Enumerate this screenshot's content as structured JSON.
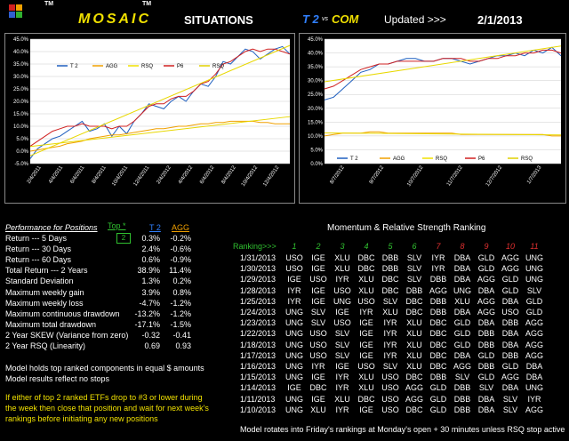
{
  "header": {
    "tm1": "TM",
    "brand": "MOSAIC",
    "tm2": "TM",
    "situations": "SITUATIONS",
    "t2": "T 2",
    "vs": "vs",
    "com": "COM",
    "updated_label": "Updated >>>",
    "updated_date": "2/1/2013"
  },
  "legend": {
    "items": [
      {
        "label": "T 2",
        "color": "#1f5fbf"
      },
      {
        "label": "AGG",
        "color": "#f0a000"
      },
      {
        "label": "RSQ",
        "color": "#f0e000"
      },
      {
        "label": "P6",
        "color": "#d02020"
      },
      {
        "label": "RSQ",
        "color": "#e0d000"
      }
    ]
  },
  "chart_data": [
    {
      "type": "line",
      "title": "",
      "y_ticks": [
        "45.0%",
        "40.0%",
        "35.0%",
        "30.0%",
        "25.0%",
        "20.0%",
        "15.0%",
        "10.0%",
        "5.0%",
        "0.0%",
        "-5.0%"
      ],
      "x_ticks": [
        "2/4/2011",
        "4/4/2011",
        "6/4/2011",
        "8/4/2011",
        "10/4/2011",
        "12/4/2011",
        "2/4/2012",
        "4/4/2012",
        "6/4/2012",
        "8/4/2012",
        "10/4/2012",
        "12/4/2012"
      ],
      "ylim": [
        -5,
        45
      ],
      "series": [
        {
          "name": "T 2",
          "values": [
            -3,
            1,
            3,
            5,
            6,
            8,
            10,
            12,
            8,
            9,
            11,
            6,
            10,
            7,
            12,
            15,
            19,
            18,
            17,
            20,
            22,
            20,
            24,
            27,
            26,
            30,
            36,
            35,
            38,
            41,
            40,
            37,
            39,
            41,
            42,
            39
          ]
        },
        {
          "name": "AGG",
          "values": [
            0,
            0.5,
            1,
            1.5,
            2,
            3,
            3.5,
            4,
            5,
            5.5,
            6,
            6.5,
            6.5,
            7,
            7.5,
            8,
            8.5,
            9,
            9,
            9.5,
            10,
            10,
            10.5,
            11,
            11,
            11.5,
            11.5,
            12,
            12,
            12,
            12,
            11.5,
            11.5,
            11,
            11,
            11
          ]
        },
        {
          "name": "P6",
          "values": [
            2,
            4,
            6,
            8,
            9,
            10,
            10,
            11,
            10,
            10,
            10,
            9,
            10,
            10,
            12,
            15,
            18,
            19,
            19,
            21,
            22,
            22,
            24,
            27,
            28,
            31,
            35,
            36,
            38,
            40,
            41,
            40,
            41,
            41,
            40,
            39
          ]
        }
      ]
    },
    {
      "type": "line",
      "title": "",
      "y_ticks": [
        "45.0%",
        "40.0%",
        "35.0%",
        "30.0%",
        "25.0%",
        "20.0%",
        "15.0%",
        "10.0%",
        "5.0%",
        "0.0%"
      ],
      "x_ticks": [
        "8/7/2012",
        "9/7/2012",
        "10/7/2012",
        "11/7/2012",
        "12/7/2012",
        "1/7/2013"
      ],
      "ylim": [
        0,
        45
      ],
      "series": [
        {
          "name": "T 2",
          "values": [
            23,
            24,
            27,
            30,
            33,
            34,
            36,
            36,
            37,
            38,
            38,
            37,
            37,
            38,
            38,
            37,
            36,
            37,
            38,
            39,
            39,
            40,
            39,
            41,
            40,
            42,
            39
          ]
        },
        {
          "name": "AGG",
          "values": [
            10,
            10.5,
            11,
            11,
            11,
            11.5,
            11.5,
            11,
            11,
            11,
            11,
            11,
            11,
            11,
            11,
            10.5,
            10.5,
            10.5,
            10.5,
            10.5,
            10.5,
            10.5,
            10.5,
            10.5,
            10.5,
            10,
            10
          ]
        },
        {
          "name": "P6",
          "values": [
            27,
            28,
            30,
            32,
            34,
            35,
            36,
            36,
            37,
            37,
            37,
            37,
            37,
            38,
            38,
            38,
            37,
            37,
            38,
            38,
            39,
            39,
            40,
            40,
            41,
            41,
            40
          ]
        }
      ]
    }
  ],
  "performance": {
    "title": "Performance for Positions",
    "top_label": "Top *",
    "top_value": "2",
    "col1": "T 2",
    "col2": "AGG",
    "rows": [
      {
        "label": "Return --- 5 Days",
        "t2": "0.3%",
        "agg": "-0.2%"
      },
      {
        "label": "Return --- 30 Days",
        "t2": "2.4%",
        "agg": "-0.6%"
      },
      {
        "label": "Return --- 60 Days",
        "t2": "0.6%",
        "agg": "-0.9%"
      },
      {
        "label": "Total Return --- 2 Years",
        "t2": "38.9%",
        "agg": "11.4%"
      },
      {
        "label": "Standard Deviation",
        "t2": "1.3%",
        "agg": "0.2%"
      },
      {
        "label": "Maximum weekly gain",
        "t2": "3.9%",
        "agg": "0.8%"
      },
      {
        "label": "Maximum weekly loss",
        "t2": "-4.7%",
        "agg": "-1.2%"
      },
      {
        "label": "Maximum continuous drawdown",
        "t2": "-13.2%",
        "agg": "-1.2%"
      },
      {
        "label": "Maximum total drawdown",
        "t2": "-17.1%",
        "agg": "-1.5%"
      },
      {
        "label": "2 Year SKEW  (Variance from zero)",
        "t2": "-0.32",
        "agg": "-0.41"
      },
      {
        "label": "2 Year RSQ  (Linearity)",
        "t2": "0.69",
        "agg": "0.93"
      }
    ],
    "note1": "Model holds top ranked  components in equal  $ amounts",
    "note2": "Model results reflect no stops",
    "warn1": "If either of top 2 ranked ETFs drop to #3 or lower during",
    "warn2": "the week then close that position and wait for next week's",
    "warn3": "rankings before initiating any new positions"
  },
  "ranking": {
    "title": "Momentum & Relative Strength Ranking",
    "header_label": "Ranking>>>",
    "cols": [
      "1",
      "2",
      "3",
      "4",
      "5",
      "6",
      "7",
      "8",
      "9",
      "10",
      "11"
    ],
    "col_colors": [
      "#30c030",
      "#30c030",
      "#30c030",
      "#30c030",
      "#30c030",
      "#30c030",
      "#e03030",
      "#e03030",
      "#e03030",
      "#e03030",
      "#e03030"
    ],
    "rows": [
      {
        "date": "1/31/2013",
        "v": [
          "USO",
          "IGE",
          "XLU",
          "DBC",
          "DBB",
          "SLV",
          "IYR",
          "DBA",
          "GLD",
          "AGG",
          "UNG"
        ]
      },
      {
        "date": "1/30/2013",
        "v": [
          "USO",
          "IGE",
          "XLU",
          "DBC",
          "DBB",
          "SLV",
          "IYR",
          "DBA",
          "GLD",
          "AGG",
          "UNG"
        ]
      },
      {
        "date": "1/29/2013",
        "v": [
          "IGE",
          "USO",
          "IYR",
          "XLU",
          "DBC",
          "SLV",
          "DBB",
          "DBA",
          "AGG",
          "GLD",
          "UNG"
        ]
      },
      {
        "date": "1/28/2013",
        "v": [
          "IYR",
          "IGE",
          "USO",
          "XLU",
          "DBC",
          "DBB",
          "AGG",
          "UNG",
          "DBA",
          "GLD",
          "SLV"
        ]
      },
      {
        "date": "1/25/2013",
        "v": [
          "IYR",
          "IGE",
          "UNG",
          "USO",
          "SLV",
          "DBC",
          "DBB",
          "XLU",
          "AGG",
          "DBA",
          "GLD"
        ]
      },
      {
        "date": "1/24/2013",
        "v": [
          "UNG",
          "SLV",
          "IGE",
          "IYR",
          "XLU",
          "DBC",
          "DBB",
          "DBA",
          "AGG",
          "USO",
          "GLD"
        ]
      },
      {
        "date": "1/23/2013",
        "v": [
          "UNG",
          "SLV",
          "USO",
          "IGE",
          "IYR",
          "XLU",
          "DBC",
          "GLD",
          "DBA",
          "DBB",
          "AGG"
        ]
      },
      {
        "date": "1/22/2013",
        "v": [
          "UNG",
          "USO",
          "SLV",
          "IGE",
          "IYR",
          "XLU",
          "DBC",
          "GLD",
          "DBB",
          "DBA",
          "AGG"
        ]
      },
      {
        "date": "1/18/2013",
        "v": [
          "UNG",
          "USO",
          "SLV",
          "IGE",
          "IYR",
          "XLU",
          "DBC",
          "GLD",
          "DBB",
          "DBA",
          "AGG"
        ]
      },
      {
        "date": "1/17/2013",
        "v": [
          "UNG",
          "USO",
          "SLV",
          "IGE",
          "IYR",
          "XLU",
          "DBC",
          "DBA",
          "GLD",
          "DBB",
          "AGG"
        ]
      },
      {
        "date": "1/16/2013",
        "v": [
          "UNG",
          "IYR",
          "IGE",
          "USO",
          "SLV",
          "XLU",
          "DBC",
          "AGG",
          "DBB",
          "GLD",
          "DBA"
        ]
      },
      {
        "date": "1/15/2013",
        "v": [
          "UNG",
          "IGE",
          "IYR",
          "XLU",
          "USO",
          "DBC",
          "DBB",
          "SLV",
          "GLD",
          "AGG",
          "DBA"
        ]
      },
      {
        "date": "1/14/2013",
        "v": [
          "IGE",
          "DBC",
          "IYR",
          "XLU",
          "USO",
          "AGG",
          "GLD",
          "DBB",
          "SLV",
          "DBA",
          "UNG"
        ]
      },
      {
        "date": "1/11/2013",
        "v": [
          "UNG",
          "IGE",
          "XLU",
          "DBC",
          "USO",
          "AGG",
          "GLD",
          "DBB",
          "DBA",
          "SLV",
          "IYR"
        ]
      },
      {
        "date": "1/10/2013",
        "v": [
          "UNG",
          "XLU",
          "IYR",
          "IGE",
          "USO",
          "DBC",
          "GLD",
          "DBB",
          "DBA",
          "SLV",
          "AGG"
        ]
      }
    ],
    "footer": "Model rotates into Friday's rankings at Monday's open + 30 minutes unless RSQ stop active"
  }
}
